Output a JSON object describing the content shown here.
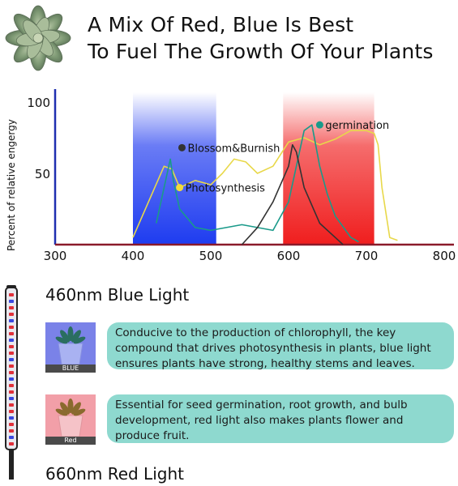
{
  "header": {
    "title_line1": "A Mix Of Red, Blue Is Best",
    "title_line2": "To Fuel The Growth Of Your Plants"
  },
  "chart_data": {
    "type": "line",
    "ylabel": "Percent of relative engergy",
    "xlabel": "",
    "xlim": [
      300,
      800
    ],
    "ylim": [
      0,
      100
    ],
    "x_ticks": [
      300,
      400,
      500,
      600,
      700,
      800
    ],
    "y_ticks": [
      50,
      100
    ],
    "bands": [
      {
        "name": "blue",
        "x": [
          400,
          507
        ],
        "color": "#1e3cf0"
      },
      {
        "name": "red",
        "x": [
          593,
          710
        ],
        "color": "#f01e1e"
      }
    ],
    "series": [
      {
        "name": "Photosynthesis",
        "color": "#e8d84a",
        "x": [
          400,
          420,
          440,
          450,
          460,
          480,
          500,
          515,
          530,
          545,
          560,
          580,
          600,
          620,
          640,
          660,
          680,
          700,
          710,
          715,
          720,
          730,
          740
        ],
        "y": [
          5,
          30,
          55,
          53,
          40,
          45,
          42,
          50,
          60,
          58,
          50,
          55,
          72,
          75,
          70,
          74,
          80,
          80,
          78,
          70,
          40,
          5,
          3
        ]
      },
      {
        "name": "germination",
        "color": "#1a9a8a",
        "x": [
          430,
          440,
          448,
          452,
          460,
          480,
          500,
          520,
          540,
          560,
          580,
          600,
          610,
          620,
          630,
          640,
          650,
          660,
          680,
          690
        ],
        "y": [
          15,
          40,
          60,
          45,
          25,
          12,
          10,
          12,
          14,
          12,
          10,
          30,
          55,
          80,
          84,
          55,
          35,
          20,
          5,
          2
        ]
      },
      {
        "name": "Blossom&Burnish",
        "color": "#333333",
        "x": [
          540,
          560,
          580,
          600,
          605,
          610,
          620,
          640,
          660,
          670
        ],
        "y": [
          0,
          12,
          30,
          55,
          70,
          65,
          40,
          15,
          5,
          0
        ]
      }
    ],
    "annotations": [
      {
        "text": "Blossom&Burnish",
        "color": "#333333"
      },
      {
        "text": "Photosynthesis",
        "color": "#f2dc3a"
      },
      {
        "text": "germination",
        "color": "#1a9a8a"
      }
    ]
  },
  "blue_light": {
    "heading": "460nm Blue Light",
    "thumb_label": "BLUE",
    "description": "Conducive to the production of chlorophyll, the key compound that drives photosynthesis in plants, blue light ensures plants have strong, healthy stems and leaves."
  },
  "red_light": {
    "heading": "660nm Red Light",
    "thumb_label": "Red",
    "description": "Essential for seed germination, root growth, and bulb development, red light  also makes plants flower and produce fruit."
  },
  "colors": {
    "info_box": "#8ed9cf",
    "blue_band": "#1e3cf0",
    "red_band": "#f01e1e"
  },
  "icons": {
    "succulent": "succulent-icon",
    "grow_light": "grow-light-icon"
  }
}
